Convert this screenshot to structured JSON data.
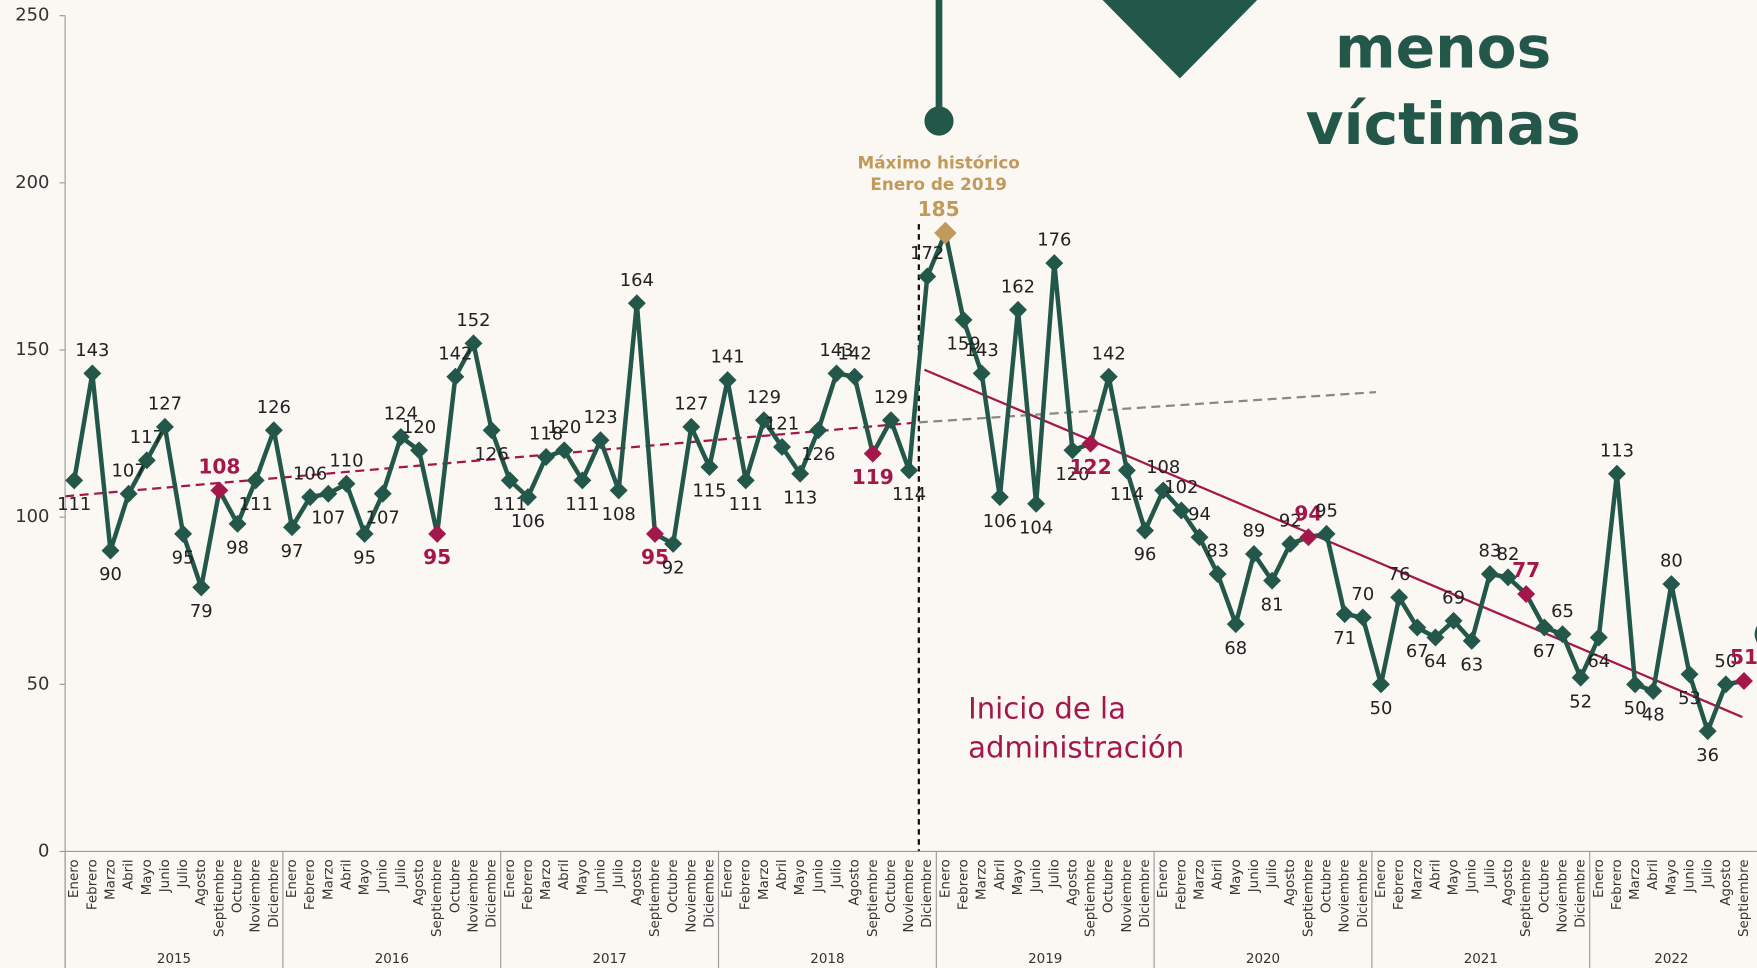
{
  "chart_data": {
    "type": "line",
    "categories": [
      "Enero",
      "Febrero",
      "Marzo",
      "Abril",
      "Mayo",
      "Junio",
      "Julio",
      "Agosto",
      "Septiembre",
      "Octubre",
      "Noviembre",
      "Diciembre",
      "Enero",
      "Febrero",
      "Marzo",
      "Abril",
      "Mayo",
      "Junio",
      "Julio",
      "Agosto",
      "Septiembre",
      "Octubre",
      "Noviembre",
      "Diciembre",
      "Enero",
      "Febrero",
      "Marzo",
      "Abril",
      "Mayo",
      "Junio",
      "Julio",
      "Agosto",
      "Septiembre",
      "Octubre",
      "Noviembre",
      "Diciembre",
      "Enero",
      "Febrero",
      "Marzo",
      "Abril",
      "Mayo",
      "Junio",
      "Julio",
      "Agosto",
      "Septiembre",
      "Octubre",
      "Noviembre",
      "Diciembre",
      "Enero",
      "Febrero",
      "Marzo",
      "Abril",
      "Mayo",
      "Junio",
      "Julio",
      "Agosto",
      "Septiembre",
      "Octubre",
      "Noviembre",
      "Diciembre",
      "Enero",
      "Febrero",
      "Marzo",
      "Abril",
      "Mayo",
      "Junio",
      "Julio",
      "Agosto",
      "Septiembre",
      "Octubre",
      "Noviembre",
      "Diciembre",
      "Enero",
      "Febrero",
      "Marzo",
      "Abril",
      "Mayo",
      "Junio",
      "Julio",
      "Agosto",
      "Septiembre",
      "Octubre",
      "Noviembre",
      "Diciembre",
      "Enero",
      "Febrero",
      "Marzo",
      "Abril",
      "Mayo",
      "Junio",
      "Julio",
      "Agosto",
      "Septiembre"
    ],
    "years": [
      "2015",
      "2016",
      "2017",
      "2018",
      "2019",
      "2020",
      "2021",
      "2022"
    ],
    "color": "#22574a",
    "values": [
      111,
      143,
      90,
      107,
      117,
      127,
      95,
      79,
      108,
      98,
      111,
      126,
      97,
      106,
      107,
      110,
      95,
      107,
      124,
      120,
      95,
      142,
      152,
      126,
      111,
      106,
      118,
      120,
      111,
      123,
      108,
      164,
      95,
      92,
      127,
      115,
      141,
      111,
      129,
      121,
      113,
      126,
      143,
      142,
      119,
      129,
      114,
      172,
      185,
      159,
      143,
      106,
      162,
      104,
      176,
      120,
      122,
      142,
      114,
      96,
      108,
      102,
      94,
      83,
      68,
      89,
      81,
      92,
      94,
      95,
      71,
      70,
      50,
      76,
      67,
      64,
      69,
      63,
      83,
      82,
      77,
      67,
      65,
      52,
      64,
      113,
      50,
      48,
      80,
      53,
      36,
      50,
      51
    ],
    "highlight": {
      "color": "#a3174a",
      "indices": [
        8,
        20,
        32,
        44,
        56,
        68,
        80,
        92
      ]
    },
    "peak": {
      "color": "#c19a5b",
      "index": 48,
      "label": [
        "Máximo histórico",
        "Enero de 2019"
      ]
    },
    "ylim": [
      0,
      250
    ],
    "yticks": [
      0,
      50,
      100,
      150,
      200,
      250
    ],
    "annotations": {
      "headline": [
        "menos",
        "víctimas"
      ],
      "administration": [
        "Inicio de la",
        "administración"
      ]
    }
  }
}
